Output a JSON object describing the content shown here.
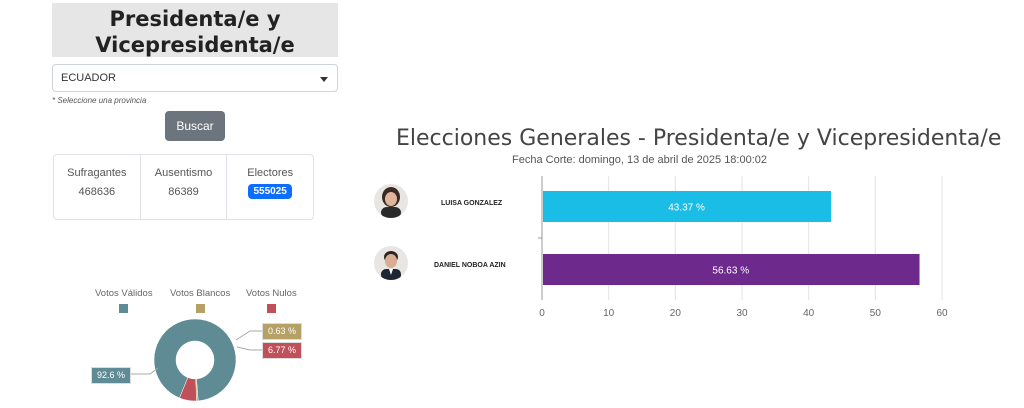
{
  "header": {
    "title": "Presidenta/e y Vicepresidenta/e"
  },
  "filter": {
    "province_selected": "ECUADOR",
    "hint": "* Seleccione una provincia",
    "search_label": "Buscar"
  },
  "stats": {
    "sufragantes_label": "Sufragantes",
    "sufragantes_value": "468636",
    "ausentismo_label": "Ausentismo",
    "ausentismo_value": "86389",
    "electores_label": "Electores",
    "electores_value": "555025"
  },
  "votes_legend": {
    "validos_label": "Votos Válidos",
    "blancos_label": "Votos Blancos",
    "nulos_label": "Votos Nulos"
  },
  "colors": {
    "validos": "#5f8b95",
    "blancos": "#b5a165",
    "nulos": "#c0515a",
    "gonzalez": "#19bde6",
    "noboa": "#6d2a8c"
  },
  "chart_data": [
    {
      "type": "pie",
      "labels": [
        "Votos Válidos",
        "Votos Blancos",
        "Votos Nulos"
      ],
      "values": [
        92.6,
        0.63,
        6.77
      ],
      "value_labels": [
        "92.6 %",
        "0.63 %",
        "6.77 %"
      ]
    },
    {
      "type": "bar",
      "title": "Elecciones Generales - Presidenta/e y Vicepresidenta/e",
      "subtitle": "Fecha Corte: domingo, 13 de abril de 2025 18:00:02",
      "categories": [
        "LUISA GONZALEZ",
        "DANIEL NOBOA AZIN"
      ],
      "values": [
        43.37,
        56.63
      ],
      "value_labels": [
        "43.37 %",
        "56.63 %"
      ],
      "xlim": [
        0,
        60
      ],
      "ticks": [
        0,
        10,
        20,
        30,
        40,
        50,
        60
      ],
      "orientation": "horizontal",
      "grid": true
    }
  ]
}
